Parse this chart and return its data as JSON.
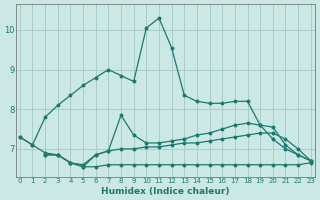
{
  "xlabel": "Humidex (Indice chaleur)",
  "bg_color": "#cce8e4",
  "grid_color": "#aacccc",
  "line_color": "#1a7a6e",
  "series": [
    {
      "x": [
        0,
        1,
        2,
        3,
        4,
        5,
        6,
        7,
        8,
        9,
        10,
        11,
        12,
        13,
        14,
        15,
        16,
        17,
        18,
        19,
        20,
        21,
        22,
        23
      ],
      "y": [
        7.3,
        7.1,
        7.8,
        8.1,
        8.35,
        8.6,
        8.8,
        9.0,
        8.85,
        8.7,
        10.05,
        10.3,
        9.55,
        8.35,
        8.2,
        8.15,
        8.15,
        8.2,
        8.2,
        7.6,
        7.25,
        7.0,
        6.85,
        6.7
      ]
    },
    {
      "x": [
        0,
        1,
        2,
        3,
        4,
        5,
        6,
        7,
        8,
        9,
        10,
        11,
        12,
        13,
        14,
        15,
        16,
        17,
        18,
        19,
        20,
        21,
        22,
        23
      ],
      "y": [
        7.3,
        7.1,
        6.9,
        6.85,
        6.65,
        6.6,
        6.85,
        6.95,
        7.85,
        7.35,
        7.15,
        7.15,
        7.2,
        7.25,
        7.35,
        7.4,
        7.5,
        7.6,
        7.65,
        7.6,
        7.55,
        7.1,
        6.85,
        6.7
      ]
    },
    {
      "x": [
        2,
        3,
        4,
        5,
        6,
        7,
        8,
        9,
        10,
        11,
        12,
        13,
        14,
        15,
        16,
        17,
        18,
        19,
        20,
        21,
        22,
        23
      ],
      "y": [
        6.85,
        6.85,
        6.65,
        6.55,
        6.85,
        6.95,
        7.0,
        7.0,
        7.05,
        7.05,
        7.1,
        7.15,
        7.15,
        7.2,
        7.25,
        7.3,
        7.35,
        7.4,
        7.4,
        7.25,
        7.0,
        6.7
      ]
    },
    {
      "x": [
        2,
        3,
        4,
        5,
        6,
        7,
        8,
        9,
        10,
        11,
        12,
        13,
        14,
        15,
        16,
        17,
        18,
        19,
        20,
        21,
        22,
        23
      ],
      "y": [
        6.85,
        6.85,
        6.65,
        6.55,
        6.55,
        6.6,
        6.6,
        6.6,
        6.6,
        6.6,
        6.6,
        6.6,
        6.6,
        6.6,
        6.6,
        6.6,
        6.6,
        6.6,
        6.6,
        6.6,
        6.6,
        6.65
      ]
    }
  ],
  "xlim": [
    -0.3,
    23.3
  ],
  "ylim": [
    6.3,
    10.65
  ],
  "yticks": [
    7,
    8,
    9,
    10
  ],
  "xticks": [
    0,
    1,
    2,
    3,
    4,
    5,
    6,
    7,
    8,
    9,
    10,
    11,
    12,
    13,
    14,
    15,
    16,
    17,
    18,
    19,
    20,
    21,
    22,
    23
  ]
}
